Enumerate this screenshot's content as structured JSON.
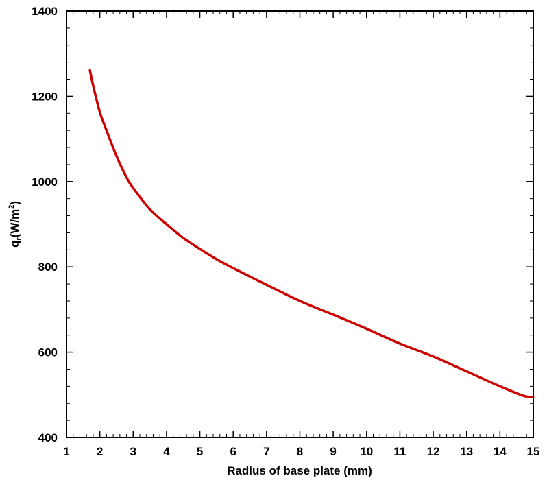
{
  "chart_data": {
    "type": "line",
    "title": "",
    "xlabel": "Radius of base plate (mm)",
    "ylabel": {
      "main": "q",
      "subscript": "r",
      "middle": "(W/m",
      "superscript": "2",
      "end": ")"
    },
    "xlim": [
      1,
      15
    ],
    "ylim": [
      400,
      1400
    ],
    "x_ticks": [
      1,
      2,
      3,
      4,
      5,
      6,
      7,
      8,
      9,
      10,
      11,
      12,
      13,
      14,
      15
    ],
    "y_ticks": [
      400,
      600,
      800,
      1000,
      1200,
      1400
    ],
    "grid": false,
    "legend": "none",
    "series": [
      {
        "color": "#cc0000",
        "x": [
          1.7,
          1.8,
          2.0,
          2.2,
          2.5,
          2.8,
          3.0,
          3.5,
          4.0,
          4.5,
          5.0,
          5.5,
          6.0,
          7.0,
          8.0,
          9.0,
          10.0,
          11.0,
          12.0,
          13.0,
          14.0,
          14.7,
          15.0
        ],
        "y": [
          1262,
          1225,
          1163,
          1120,
          1060,
          1010,
          985,
          935,
          900,
          868,
          842,
          818,
          797,
          758,
          720,
          688,
          655,
          620,
          590,
          555,
          520,
          498,
          495
        ]
      }
    ]
  }
}
